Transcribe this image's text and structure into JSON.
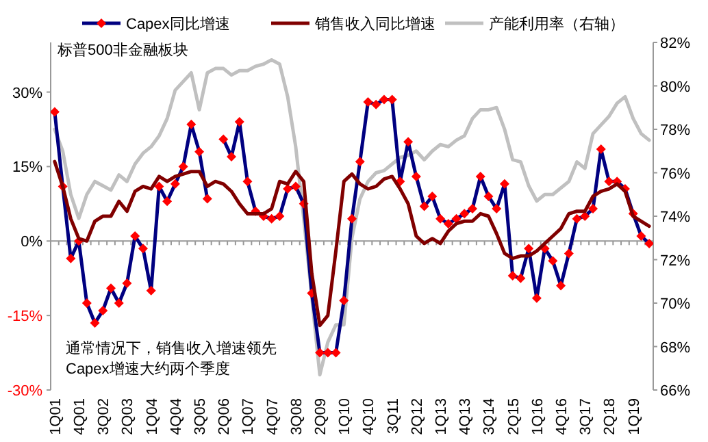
{
  "chart_data": {
    "type": "line",
    "categories": [
      "1Q01",
      null,
      null,
      "4Q01",
      null,
      null,
      "3Q02",
      null,
      null,
      "2Q03",
      null,
      null,
      "1Q04",
      null,
      null,
      "4Q04",
      null,
      null,
      "3Q05",
      null,
      null,
      "2Q06",
      null,
      null,
      "1Q07",
      null,
      null,
      "4Q07",
      null,
      null,
      "3Q08",
      null,
      null,
      "2Q09",
      null,
      null,
      "1Q10",
      null,
      null,
      "4Q10",
      null,
      null,
      "3Q11",
      null,
      null,
      "2Q12",
      null,
      null,
      "1Q13",
      null,
      null,
      "4Q13",
      null,
      null,
      "3Q14",
      null,
      null,
      "2Q15",
      null,
      null,
      "1Q16",
      null,
      null,
      "4Q16",
      null,
      null,
      "3Q17",
      null,
      null,
      "2Q18",
      null,
      null,
      "1Q19",
      null,
      null
    ],
    "series": [
      {
        "name": "Capex同比增速",
        "color": "#000080",
        "marker": "diamond",
        "values": [
          26,
          11,
          -3.5,
          0,
          -12.5,
          -16.5,
          -14,
          -9.5,
          -12.5,
          -8.5,
          1,
          -1.5,
          -10,
          11,
          8,
          11.5,
          15,
          23.5,
          18,
          8.5,
          null,
          20.5,
          17,
          24,
          12,
          6,
          5,
          4.5,
          5,
          10.5,
          11,
          7.5,
          -10.5,
          -22.5,
          -22.5,
          -22.5,
          -12,
          4.5,
          16,
          28,
          27.5,
          28.5,
          28.5,
          12,
          20,
          13,
          7,
          9,
          4.5,
          3.5,
          4.5,
          5.5,
          6.5,
          13,
          9,
          6.5,
          11.5,
          -7,
          -7.5,
          -1.5,
          -11.5,
          -1.5,
          -4,
          -9,
          -2.5,
          4.5,
          5,
          6.5,
          18.5,
          12,
          12,
          10.5,
          5.5,
          1,
          -0.5
        ]
      },
      {
        "name": "销售收入同比增速",
        "color": "#800000",
        "values": [
          16,
          11,
          4.5,
          0.5,
          0,
          4,
          5,
          5,
          8,
          6,
          10,
          11,
          10.5,
          13,
          12,
          13,
          13.5,
          14,
          14,
          11,
          12,
          11.5,
          10,
          7.5,
          5.5,
          5.5,
          5.5,
          6.5,
          12,
          11.5,
          14,
          12,
          -6.5,
          -17,
          -15,
          -2,
          12,
          13.5,
          11.5,
          10.5,
          11,
          12.5,
          13,
          10.5,
          7.5,
          1,
          -0.5,
          0.5,
          -0.5,
          2,
          3.5,
          4,
          4,
          5.5,
          5,
          1.5,
          -2.5,
          -3.5,
          -3,
          -3,
          -2,
          -0.5,
          1,
          2.5,
          5.5,
          6,
          6,
          9,
          10,
          10.5,
          11.5,
          10,
          5,
          4,
          3
        ]
      },
      {
        "name": "产能利用率（右轴）",
        "color": "#c0c0c0",
        "axis": "y2",
        "values": [
          78,
          77,
          75,
          73.9,
          75,
          75.6,
          75.4,
          75.2,
          75.9,
          75.6,
          76.4,
          76.9,
          77.2,
          77.7,
          78.5,
          79.8,
          80.2,
          80.6,
          78.9,
          80.6,
          80.8,
          80.8,
          80.5,
          80.7,
          80.7,
          80.9,
          81,
          81.2,
          81,
          79.5,
          77.2,
          73.9,
          70.3,
          66.7,
          68.2,
          69,
          69,
          73,
          74.8,
          75.6,
          76,
          76.1,
          76.4,
          76.7,
          76.8,
          77,
          76.6,
          77,
          77.3,
          77.2,
          77.5,
          77.7,
          78.5,
          78.9,
          78.9,
          79,
          78,
          76.6,
          76.5,
          75.4,
          74.7,
          75,
          75,
          75.3,
          75.6,
          76.5,
          76.2,
          77.8,
          78.2,
          78.6,
          79.2,
          79.5,
          78.5,
          77.8,
          77.5
        ]
      }
    ],
    "ylim": [
      -30,
      40
    ],
    "yticks": [
      {
        "value": -30,
        "label": "-30%"
      },
      {
        "value": -15,
        "label": "-15%"
      },
      {
        "value": 0,
        "label": "0%"
      },
      {
        "value": 15,
        "label": "15%"
      },
      {
        "value": 30,
        "label": "30%"
      }
    ],
    "y2lim": [
      66,
      82
    ],
    "y2ticks": [
      {
        "value": 66,
        "label": "66%"
      },
      {
        "value": 68,
        "label": "68%"
      },
      {
        "value": 70,
        "label": "70%"
      },
      {
        "value": 72,
        "label": "72%"
      },
      {
        "value": 74,
        "label": "74%"
      },
      {
        "value": 76,
        "label": "76%"
      },
      {
        "value": 78,
        "label": "78%"
      },
      {
        "value": 80,
        "label": "80%"
      },
      {
        "value": 82,
        "label": "82%"
      }
    ],
    "legend": "top",
    "annotations": [
      "标普500非金融板块",
      "通常情况下，销售收入增速领先Capex增速大约两个季度"
    ]
  }
}
